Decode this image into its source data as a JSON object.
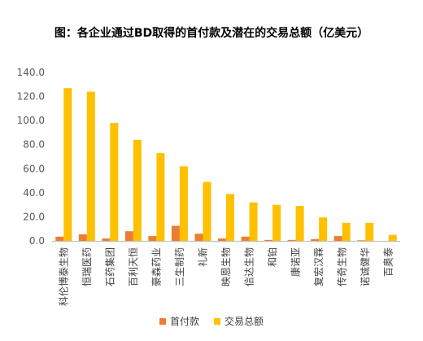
{
  "chart_data": {
    "type": "bar",
    "title": "图：各企业通过BD取得的首付款及潜在的交易总额（亿美元）",
    "categories": [
      "科伦博泰生物",
      "恒瑞医药",
      "石药集团",
      "百利天恒",
      "豪森药业",
      "三生制药",
      "礼新",
      "映恩生物",
      "信达生物",
      "和铂",
      "康诺亚",
      "复宏汉霖",
      "传奇生物",
      "诺诚健华",
      "百奥泰"
    ],
    "series": [
      {
        "name": "首付款",
        "color": "#ED7D31",
        "values": [
          3.5,
          5.5,
          2.0,
          8.0,
          4.0,
          12.5,
          6.0,
          2.0,
          3.5,
          0.8,
          0.8,
          1.5,
          4.0,
          0.5,
          0.0
        ]
      },
      {
        "name": "交易总额",
        "color": "#FFC000",
        "values": [
          127.0,
          124.0,
          98.0,
          84.0,
          73.0,
          62.0,
          49.0,
          39.0,
          32.0,
          30.0,
          29.0,
          19.5,
          15.0,
          15.0,
          5.0
        ]
      }
    ],
    "ylim": [
      0,
      140
    ],
    "yticks": [
      "0.0",
      "20.0",
      "40.0",
      "60.0",
      "80.0",
      "100.0",
      "120.0",
      "140.0"
    ],
    "grid": false,
    "legend_position": "bottom"
  }
}
